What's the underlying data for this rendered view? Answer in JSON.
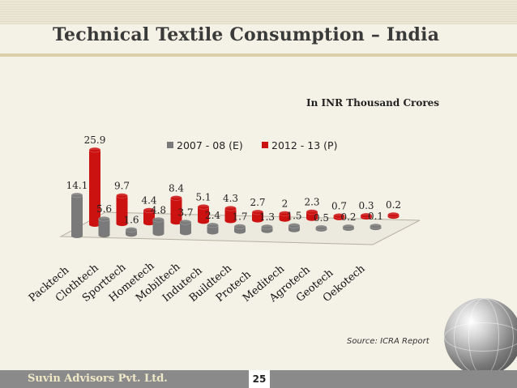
{
  "slide": {
    "title": "Technical Textile Consumption – India",
    "units_note": "In INR Thousand Crores",
    "source": "Source: ICRA  Report",
    "footer_company": "Suvin Advisors Pvt. Ltd.",
    "page_number": "25"
  },
  "colors": {
    "series1": "#7a7a7a",
    "series2": "#cc1111"
  },
  "chart_data": {
    "type": "bar",
    "title": "Technical Textile Consumption – India",
    "ylabel": "In INR Thousand Crores",
    "legend_position": "top",
    "ylim": [
      0,
      26
    ],
    "categories": [
      "Packtech",
      "Clothtech",
      "Sporttech",
      "Hometech",
      "Mobiltech",
      "Indutech",
      "Buildtech",
      "Protech",
      "Meditech",
      "Agrotech",
      "Geotech",
      "Oekotech"
    ],
    "series": [
      {
        "name": "2007 - 08 (E)",
        "values": [
          14.1,
          5.6,
          1.6,
          4.8,
          3.7,
          2.4,
          1.7,
          1.3,
          1.5,
          0.5,
          0.2,
          0.1
        ]
      },
      {
        "name": "2012 - 13 (P)",
        "values": [
          25.9,
          9.7,
          4.4,
          8.4,
          5.1,
          4.3,
          2.7,
          2.0,
          2.3,
          0.7,
          0.3,
          0.2
        ]
      }
    ]
  }
}
